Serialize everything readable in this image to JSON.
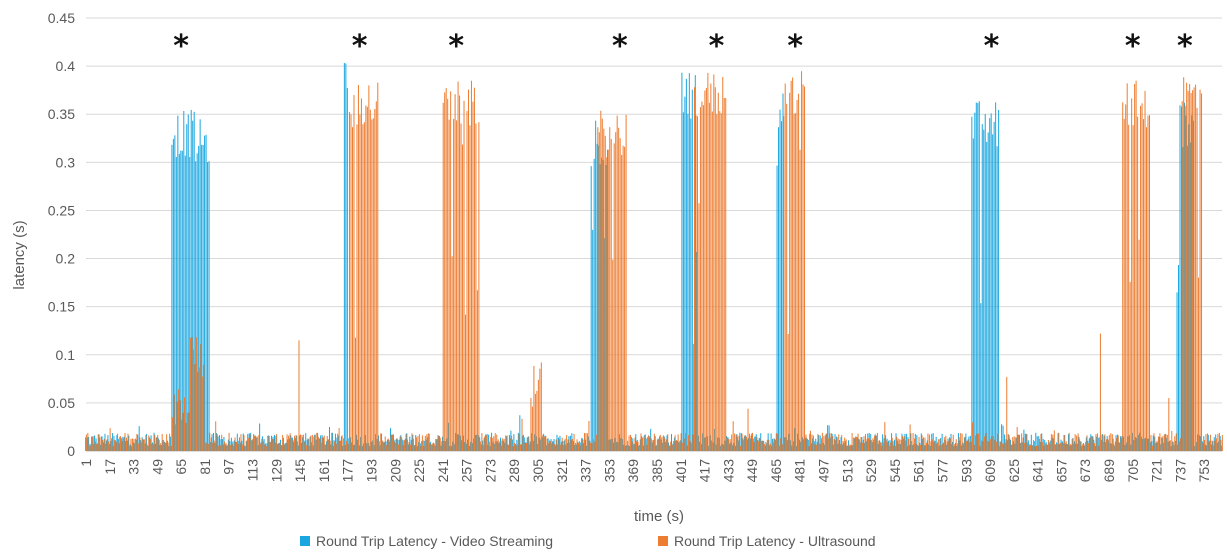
{
  "chart_data": {
    "type": "bar",
    "title": "",
    "xlabel": "time (s)",
    "ylabel": "latency (s)",
    "ylim": [
      0,
      0.45
    ],
    "yticks": [
      0,
      0.05,
      0.1,
      0.15,
      0.2,
      0.25,
      0.3,
      0.35,
      0.4,
      0.45
    ],
    "ytick_labels": [
      "0",
      "0.05",
      "0.1",
      "0.15",
      "0.2",
      "0.25",
      "0.3",
      "0.35",
      "0.4",
      "0.45"
    ],
    "xlim": [
      1,
      765
    ],
    "xticks": [
      1,
      17,
      33,
      49,
      65,
      81,
      97,
      113,
      129,
      145,
      161,
      177,
      193,
      209,
      225,
      241,
      257,
      273,
      289,
      305,
      321,
      337,
      353,
      369,
      385,
      401,
      417,
      433,
      449,
      465,
      481,
      497,
      513,
      529,
      545,
      561,
      577,
      593,
      609,
      625,
      641,
      657,
      673,
      689,
      705,
      721,
      737,
      753
    ],
    "grid": "horizontal",
    "legend_position": "bottom",
    "annotation_marker": "*",
    "annotations_x": [
      65,
      185,
      250,
      360,
      425,
      478,
      610,
      705,
      740
    ],
    "series": [
      {
        "name": "Round Trip Latency - Video Streaming",
        "color": "#1aa7df",
        "baseline": 0.012,
        "bursts": [
          {
            "x": [
              59,
              74
            ],
            "level": 0.33
          },
          {
            "x": [
              75,
              84
            ],
            "level": 0.32
          },
          {
            "x": [
              175,
              177
            ],
            "level": 0.38
          },
          {
            "x": [
              341,
              352
            ],
            "level": 0.32
          },
          {
            "x": [
              402,
              412
            ],
            "level": 0.37
          },
          {
            "x": [
              466,
              470
            ],
            "level": 0.36
          },
          {
            "x": [
              597,
              615
            ],
            "level": 0.34
          },
          {
            "x": [
              735,
              746
            ],
            "level": 0.34
          }
        ]
      },
      {
        "name": "Round Trip Latency - Ultrasound",
        "color": "#ed7d31",
        "baseline": 0.012,
        "bursts": [
          {
            "x": [
              59,
              70
            ],
            "level": 0.05
          },
          {
            "x": [
              71,
              80
            ],
            "level": 0.1
          },
          {
            "x": [
              178,
              197
            ],
            "level": 0.36
          },
          {
            "x": [
              241,
              265
            ],
            "level": 0.36
          },
          {
            "x": [
              300,
              306
            ],
            "level": 0.07
          },
          {
            "x": [
              345,
              364
            ],
            "level": 0.33
          },
          {
            "x": [
              410,
              431
            ],
            "level": 0.37
          },
          {
            "x": [
              470,
              484
            ],
            "level": 0.37
          },
          {
            "x": [
              698,
              716
            ],
            "level": 0.36
          },
          {
            "x": [
              738,
              751
            ],
            "level": 0.37
          }
        ],
        "spikes": [
          {
            "x": 144,
            "value": 0.115
          },
          {
            "x": 307,
            "value": 0.092
          },
          {
            "x": 446,
            "value": 0.044
          },
          {
            "x": 620,
            "value": 0.077
          },
          {
            "x": 683,
            "value": 0.122
          },
          {
            "x": 729,
            "value": 0.055
          }
        ]
      }
    ]
  }
}
